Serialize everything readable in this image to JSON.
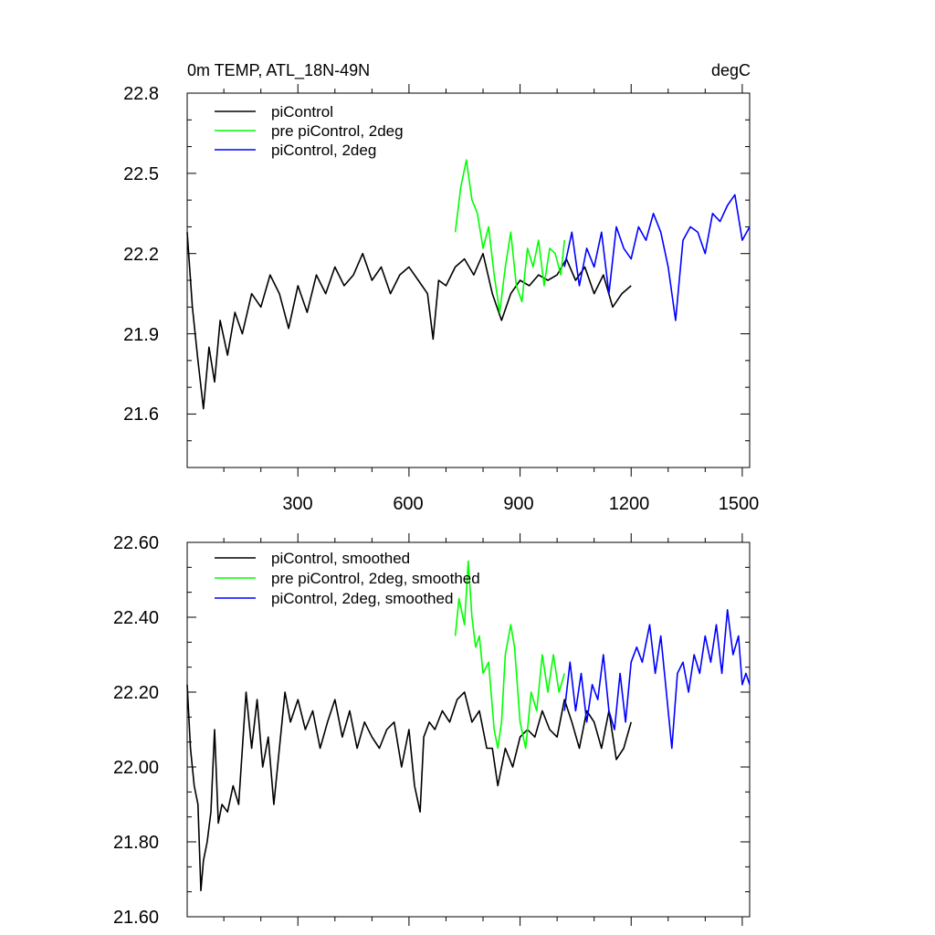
{
  "chart_data": [
    {
      "type": "line",
      "title": "0m TEMP, ATL_18N-49N",
      "units": "degC",
      "xlabel": "",
      "ylabel": "",
      "xlim": [
        1,
        1520
      ],
      "ylim": [
        21.4,
        22.8
      ],
      "x_ticks": [
        300,
        600,
        900,
        1200,
        1500
      ],
      "x_tick_labels": [
        "300",
        "600",
        "900",
        "1200",
        "1500"
      ],
      "y_ticks": [
        21.6,
        21.9,
        22.2,
        22.5,
        22.8
      ],
      "y_tick_labels": [
        "21.6",
        "21.9",
        "22.2",
        "22.5",
        "22.8"
      ],
      "grid": false,
      "legend_placement": "top-left",
      "series": [
        {
          "name": "piControl",
          "color": "#000000",
          "x_start": 1,
          "x_end": 1200,
          "points": [
            [
              1,
              22.28
            ],
            [
              15,
              22.0
            ],
            [
              30,
              21.8
            ],
            [
              45,
              21.62
            ],
            [
              60,
              21.85
            ],
            [
              75,
              21.72
            ],
            [
              90,
              21.95
            ],
            [
              110,
              21.82
            ],
            [
              130,
              21.98
            ],
            [
              150,
              21.9
            ],
            [
              175,
              22.05
            ],
            [
              200,
              22.0
            ],
            [
              225,
              22.12
            ],
            [
              250,
              22.05
            ],
            [
              275,
              21.92
            ],
            [
              300,
              22.08
            ],
            [
              325,
              21.98
            ],
            [
              350,
              22.12
            ],
            [
              375,
              22.05
            ],
            [
              400,
              22.15
            ],
            [
              425,
              22.08
            ],
            [
              450,
              22.12
            ],
            [
              475,
              22.2
            ],
            [
              500,
              22.1
            ],
            [
              525,
              22.15
            ],
            [
              550,
              22.05
            ],
            [
              575,
              22.12
            ],
            [
              600,
              22.15
            ],
            [
              625,
              22.1
            ],
            [
              650,
              22.05
            ],
            [
              665,
              21.88
            ],
            [
              680,
              22.1
            ],
            [
              700,
              22.08
            ],
            [
              725,
              22.15
            ],
            [
              750,
              22.18
            ],
            [
              775,
              22.12
            ],
            [
              800,
              22.2
            ],
            [
              825,
              22.05
            ],
            [
              850,
              21.95
            ],
            [
              875,
              22.05
            ],
            [
              900,
              22.1
            ],
            [
              925,
              22.08
            ],
            [
              950,
              22.12
            ],
            [
              975,
              22.1
            ],
            [
              1000,
              22.12
            ],
            [
              1025,
              22.18
            ],
            [
              1050,
              22.1
            ],
            [
              1075,
              22.15
            ],
            [
              1100,
              22.05
            ],
            [
              1125,
              22.12
            ],
            [
              1150,
              22.0
            ],
            [
              1175,
              22.05
            ],
            [
              1200,
              22.08
            ]
          ]
        },
        {
          "name": "pre piControl, 2deg",
          "color": "#00ff00",
          "x_start": 725,
          "x_end": 1020,
          "points": [
            [
              725,
              22.28
            ],
            [
              740,
              22.45
            ],
            [
              755,
              22.55
            ],
            [
              770,
              22.4
            ],
            [
              785,
              22.35
            ],
            [
              800,
              22.22
            ],
            [
              815,
              22.3
            ],
            [
              830,
              22.12
            ],
            [
              845,
              21.98
            ],
            [
              860,
              22.15
            ],
            [
              875,
              22.28
            ],
            [
              890,
              22.08
            ],
            [
              905,
              22.02
            ],
            [
              920,
              22.22
            ],
            [
              935,
              22.15
            ],
            [
              950,
              22.25
            ],
            [
              965,
              22.08
            ],
            [
              980,
              22.22
            ],
            [
              995,
              22.2
            ],
            [
              1010,
              22.12
            ],
            [
              1020,
              22.25
            ]
          ]
        },
        {
          "name": "piControl, 2deg",
          "color": "#0000ff",
          "x_start": 1020,
          "x_end": 1520,
          "points": [
            [
              1020,
              22.15
            ],
            [
              1040,
              22.28
            ],
            [
              1060,
              22.08
            ],
            [
              1080,
              22.22
            ],
            [
              1100,
              22.15
            ],
            [
              1120,
              22.28
            ],
            [
              1140,
              22.05
            ],
            [
              1160,
              22.3
            ],
            [
              1180,
              22.22
            ],
            [
              1200,
              22.18
            ],
            [
              1220,
              22.3
            ],
            [
              1240,
              22.25
            ],
            [
              1260,
              22.35
            ],
            [
              1280,
              22.28
            ],
            [
              1300,
              22.15
            ],
            [
              1320,
              21.95
            ],
            [
              1340,
              22.25
            ],
            [
              1360,
              22.3
            ],
            [
              1380,
              22.28
            ],
            [
              1400,
              22.2
            ],
            [
              1420,
              22.35
            ],
            [
              1440,
              22.32
            ],
            [
              1460,
              22.38
            ],
            [
              1480,
              22.42
            ],
            [
              1500,
              22.25
            ],
            [
              1520,
              22.3
            ]
          ]
        }
      ]
    },
    {
      "type": "line",
      "title": "",
      "xlabel": "",
      "ylabel": "",
      "xlim": [
        1,
        1520
      ],
      "ylim": [
        21.6,
        22.6
      ],
      "x_ticks": [
        300,
        600,
        900,
        1200,
        1500
      ],
      "y_ticks": [
        21.6,
        21.8,
        22.0,
        22.2,
        22.4,
        22.6
      ],
      "y_tick_labels": [
        "21.60",
        "21.80",
        "22.00",
        "22.20",
        "22.40",
        "22.60"
      ],
      "grid": false,
      "legend_placement": "top-left",
      "series": [
        {
          "name": "piControl, smoothed",
          "color": "#000000",
          "points": [
            [
              1,
              22.22
            ],
            [
              10,
              22.05
            ],
            [
              20,
              21.95
            ],
            [
              30,
              21.9
            ],
            [
              38,
              21.67
            ],
            [
              45,
              21.75
            ],
            [
              55,
              21.8
            ],
            [
              65,
              21.88
            ],
            [
              75,
              22.1
            ],
            [
              85,
              21.85
            ],
            [
              95,
              21.9
            ],
            [
              110,
              21.88
            ],
            [
              125,
              21.95
            ],
            [
              140,
              21.9
            ],
            [
              160,
              22.2
            ],
            [
              175,
              22.05
            ],
            [
              190,
              22.18
            ],
            [
              205,
              22.0
            ],
            [
              220,
              22.08
            ],
            [
              235,
              21.9
            ],
            [
              250,
              22.05
            ],
            [
              265,
              22.2
            ],
            [
              280,
              22.12
            ],
            [
              300,
              22.18
            ],
            [
              320,
              22.1
            ],
            [
              340,
              22.15
            ],
            [
              360,
              22.05
            ],
            [
              380,
              22.12
            ],
            [
              400,
              22.18
            ],
            [
              420,
              22.08
            ],
            [
              440,
              22.15
            ],
            [
              460,
              22.05
            ],
            [
              480,
              22.12
            ],
            [
              500,
              22.08
            ],
            [
              520,
              22.05
            ],
            [
              540,
              22.1
            ],
            [
              560,
              22.12
            ],
            [
              580,
              22.0
            ],
            [
              600,
              22.1
            ],
            [
              615,
              21.95
            ],
            [
              630,
              21.88
            ],
            [
              640,
              22.08
            ],
            [
              655,
              22.12
            ],
            [
              670,
              22.1
            ],
            [
              690,
              22.15
            ],
            [
              710,
              22.12
            ],
            [
              730,
              22.18
            ],
            [
              750,
              22.2
            ],
            [
              770,
              22.12
            ],
            [
              790,
              22.15
            ],
            [
              810,
              22.05
            ],
            [
              825,
              22.05
            ],
            [
              840,
              21.95
            ],
            [
              860,
              22.05
            ],
            [
              880,
              22.0
            ],
            [
              900,
              22.08
            ],
            [
              920,
              22.1
            ],
            [
              940,
              22.08
            ],
            [
              960,
              22.15
            ],
            [
              980,
              22.1
            ],
            [
              1000,
              22.08
            ],
            [
              1020,
              22.18
            ],
            [
              1040,
              22.12
            ],
            [
              1060,
              22.05
            ],
            [
              1080,
              22.15
            ],
            [
              1100,
              22.12
            ],
            [
              1120,
              22.05
            ],
            [
              1140,
              22.15
            ],
            [
              1160,
              22.02
            ],
            [
              1180,
              22.05
            ],
            [
              1200,
              22.12
            ]
          ]
        },
        {
          "name": "pre piControl, 2deg, smoothed",
          "color": "#00ff00",
          "points": [
            [
              725,
              22.35
            ],
            [
              735,
              22.45
            ],
            [
              750,
              22.38
            ],
            [
              760,
              22.55
            ],
            [
              770,
              22.4
            ],
            [
              780,
              22.32
            ],
            [
              790,
              22.35
            ],
            [
              800,
              22.25
            ],
            [
              815,
              22.28
            ],
            [
              830,
              22.1
            ],
            [
              840,
              22.05
            ],
            [
              850,
              22.12
            ],
            [
              860,
              22.3
            ],
            [
              875,
              22.38
            ],
            [
              885,
              22.32
            ],
            [
              900,
              22.12
            ],
            [
              915,
              22.05
            ],
            [
              930,
              22.2
            ],
            [
              945,
              22.15
            ],
            [
              960,
              22.3
            ],
            [
              975,
              22.2
            ],
            [
              990,
              22.3
            ],
            [
              1005,
              22.2
            ],
            [
              1020,
              22.25
            ]
          ]
        },
        {
          "name": "piControl, 2deg, smoothed",
          "color": "#0000ff",
          "points": [
            [
              1020,
              22.15
            ],
            [
              1035,
              22.28
            ],
            [
              1050,
              22.15
            ],
            [
              1065,
              22.25
            ],
            [
              1080,
              22.12
            ],
            [
              1095,
              22.22
            ],
            [
              1110,
              22.18
            ],
            [
              1125,
              22.3
            ],
            [
              1140,
              22.15
            ],
            [
              1155,
              22.1
            ],
            [
              1170,
              22.25
            ],
            [
              1185,
              22.12
            ],
            [
              1200,
              22.28
            ],
            [
              1215,
              22.32
            ],
            [
              1230,
              22.28
            ],
            [
              1250,
              22.38
            ],
            [
              1265,
              22.25
            ],
            [
              1280,
              22.35
            ],
            [
              1295,
              22.2
            ],
            [
              1310,
              22.05
            ],
            [
              1325,
              22.25
            ],
            [
              1340,
              22.28
            ],
            [
              1355,
              22.2
            ],
            [
              1370,
              22.3
            ],
            [
              1385,
              22.25
            ],
            [
              1400,
              22.35
            ],
            [
              1415,
              22.28
            ],
            [
              1430,
              22.38
            ],
            [
              1445,
              22.25
            ],
            [
              1460,
              22.42
            ],
            [
              1475,
              22.3
            ],
            [
              1490,
              22.35
            ],
            [
              1500,
              22.22
            ],
            [
              1510,
              22.25
            ],
            [
              1520,
              22.22
            ]
          ]
        }
      ]
    }
  ]
}
